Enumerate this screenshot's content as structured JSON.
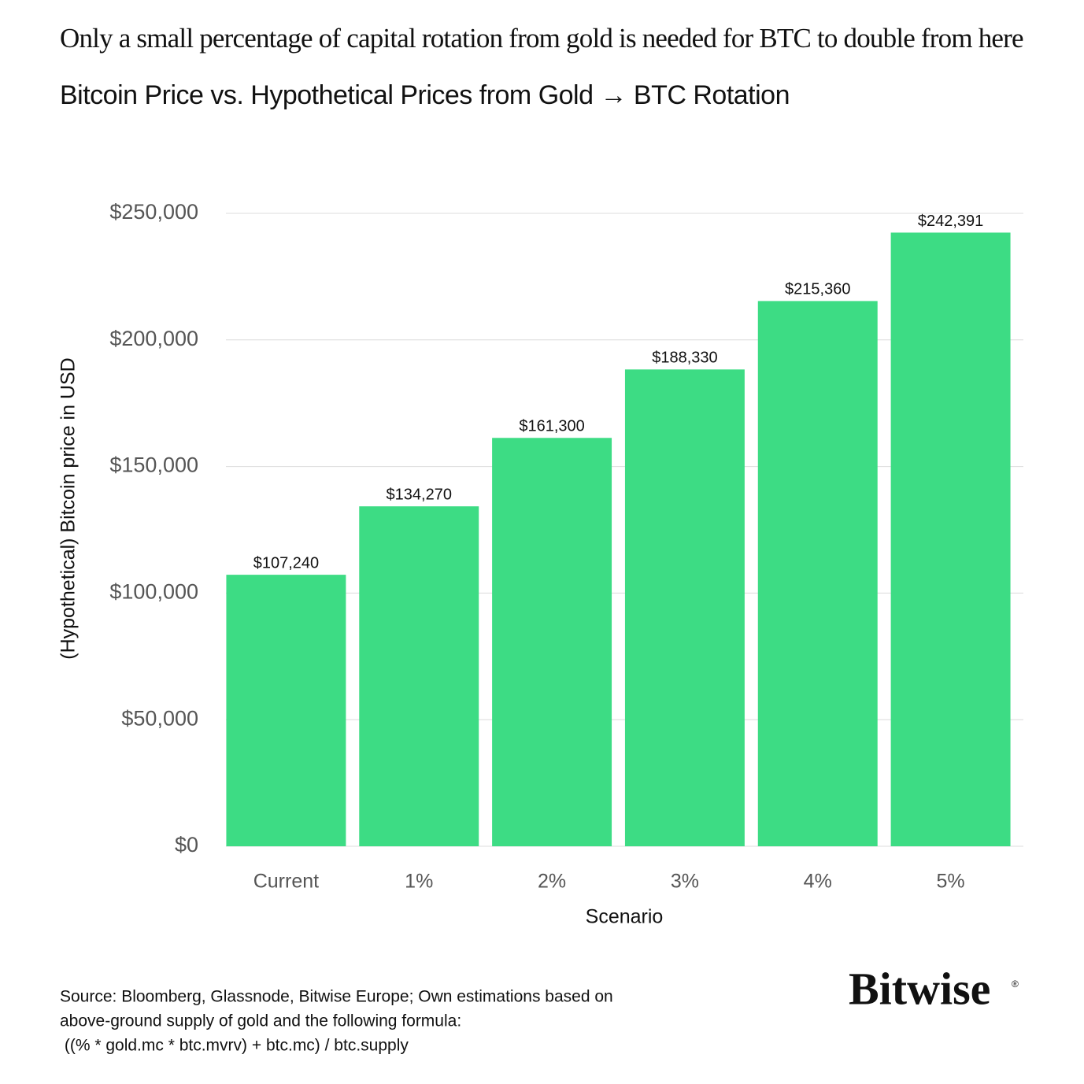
{
  "chart_data": {
    "type": "bar",
    "headline": "Only a small percentage of capital rotation from gold is needed for BTC to double from here",
    "title": "Bitcoin Price vs. Hypothetical Prices from Gold → BTC Rotation",
    "x_label": "Scenario",
    "y_label": "(Hypothetical) Bitcoin price in USD",
    "categories": [
      "Current",
      "1%",
      "2%",
      "3%",
      "4%",
      "5%"
    ],
    "values": [
      107240,
      134270,
      161300,
      188330,
      215360,
      242391
    ],
    "value_labels": [
      "$107,240",
      "$134,270",
      "$161,300",
      "$188,330",
      "$215,360",
      "$242,391"
    ],
    "color": "#3ddc84",
    "ylim": [
      0,
      250000
    ],
    "yticks": [
      {
        "value": 0,
        "label": "$0"
      },
      {
        "value": 50000,
        "label": "$50,000"
      },
      {
        "value": 100000,
        "label": "$100,000"
      },
      {
        "value": 150000,
        "label": "$150,000"
      },
      {
        "value": 200000,
        "label": "$200,000"
      },
      {
        "value": 250000,
        "label": "$250,000"
      }
    ],
    "grid": true,
    "source": [
      "Source: Bloomberg, Glassnode, Bitwise Europe; Own estimations based on",
      "above-ground supply of gold and the following formula:",
      " ((% * gold.mc * btc.mvrv) + btc.mc) / btc.supply"
    ],
    "logo": "Bitwise",
    "logo_mark": "®"
  }
}
